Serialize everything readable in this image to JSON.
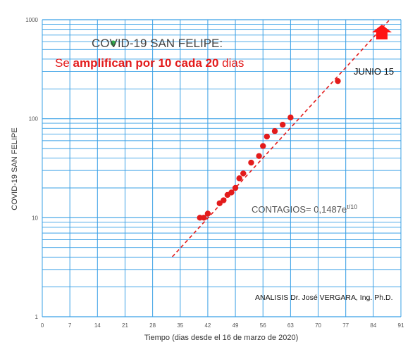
{
  "chart_data": {
    "type": "scatter",
    "title": "COVID-19 SAN FELIPE:",
    "subtitle_parts": [
      {
        "text": "Se ",
        "bold": false
      },
      {
        "text": "amplifican por 10 cada 20",
        "bold": true
      },
      {
        "text": " dias",
        "bold": false
      }
    ],
    "xlabel": "Tiempo (dias desde el 16 de marzo de 2020)",
    "ylabel": "COVID-19 SAN FELIPE",
    "x_scale": "linear",
    "y_scale": "log",
    "xlim": [
      0,
      91
    ],
    "ylim": [
      1,
      1000
    ],
    "x_ticks": [
      0,
      7,
      14,
      21,
      28,
      35,
      42,
      49,
      56,
      63,
      70,
      77,
      84,
      91
    ],
    "x_tick_labels": [
      "0",
      "7",
      "14",
      "21",
      "28",
      "35",
      "42",
      "49",
      "56",
      "63",
      "70",
      "77",
      "84",
      "91"
    ],
    "y_ticks": [
      1,
      10,
      100,
      1000
    ],
    "y_tick_labels": [
      "1",
      "10",
      "100",
      "1000"
    ],
    "grid": true,
    "series": [
      {
        "color": "#e31b1b",
        "x": [
          40,
          41,
          42,
          45,
          46,
          47,
          48,
          49,
          50,
          51,
          53,
          55,
          56,
          57,
          59,
          61,
          63,
          75
        ],
        "y": [
          10,
          10,
          11,
          14,
          15,
          17,
          18,
          20,
          25,
          28,
          36,
          42,
          53,
          66,
          75,
          87,
          103,
          240
        ]
      }
    ],
    "marker_green": {
      "x": 18,
      "y": 580,
      "color": "#2eaa4a"
    },
    "trendline": {
      "formula_base": "CONTAGIOS= 0,1487e",
      "formula_exp": "t/10",
      "a": 0.1487,
      "rate": 0.1,
      "x_range": [
        33,
        88
      ],
      "color": "#e31b1b",
      "style": "dashed"
    },
    "annotations": {
      "junio": "JUNIO 15",
      "credit": "ANALISIS Dr. José VERGARA, Ing. Ph.D."
    },
    "colors": {
      "grid": "#3aa0e6",
      "points": "#e31b1b",
      "arrow": "#ff1414",
      "trend": "#e31b1b"
    }
  }
}
